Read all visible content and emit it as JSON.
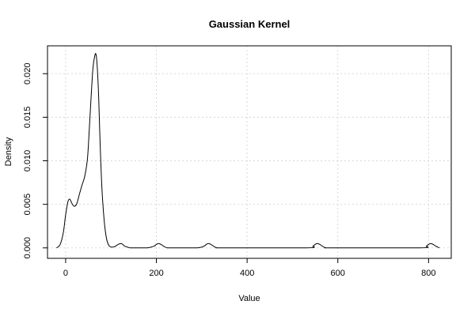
{
  "chart_data": {
    "type": "line",
    "title": "Gaussian Kernel",
    "xlabel": "Value",
    "ylabel": "Density",
    "xlim": [
      -40,
      850
    ],
    "ylim": [
      -0.0012,
      0.0232
    ],
    "x_ticks": [
      0,
      200,
      400,
      600,
      800
    ],
    "x_tick_labels": [
      "0",
      "200",
      "400",
      "600",
      "800"
    ],
    "y_ticks": [
      0.0,
      0.005,
      0.01,
      0.015,
      0.02
    ],
    "y_tick_labels": [
      "0.000",
      "0.005",
      "0.010",
      "0.015",
      "0.020"
    ],
    "grid": true,
    "series": [
      {
        "x": [
          -20,
          -12,
          -5,
          0,
          5,
          9,
          13,
          18,
          24,
          30,
          36,
          42,
          48,
          52,
          56,
          60,
          64,
          67,
          70,
          73,
          76,
          80,
          85,
          90,
          95,
          100,
          105,
          110,
          116,
          122,
          126,
          130,
          136,
          142,
          150,
          180,
          195,
          200,
          205,
          210,
          216,
          224,
          240,
          290,
          305,
          310,
          315,
          320,
          326,
          334,
          350,
          530,
          545,
          550,
          555,
          560,
          566,
          574,
          590,
          780,
          795,
          800,
          805,
          810,
          816,
          824
        ],
        "y": [
          0.0,
          0.0004,
          0.0018,
          0.0038,
          0.0053,
          0.0056,
          0.0052,
          0.0048,
          0.005,
          0.0061,
          0.0072,
          0.0082,
          0.0102,
          0.0135,
          0.0172,
          0.0205,
          0.022,
          0.0222,
          0.0205,
          0.017,
          0.012,
          0.0068,
          0.0031,
          0.0011,
          0.0003,
          0.0001,
          0.0001,
          0.0002,
          0.0004,
          0.0005,
          0.0004,
          0.0002,
          0.0001,
          0.0,
          0.0,
          0.0,
          0.0002,
          0.0004,
          0.0005,
          0.0004,
          0.0002,
          0.0,
          0.0,
          0.0,
          0.0002,
          0.0004,
          0.0005,
          0.0004,
          0.0002,
          0.0,
          0.0,
          0.0,
          0.0002,
          0.0004,
          0.0005,
          0.0004,
          0.0002,
          0.0,
          0.0,
          0.0,
          0.0002,
          0.0004,
          0.0005,
          0.0004,
          0.0002,
          0.0
        ]
      }
    ],
    "colors": {
      "line": "#000000",
      "grid": "#d8d8d8",
      "axis": "#000000"
    }
  }
}
